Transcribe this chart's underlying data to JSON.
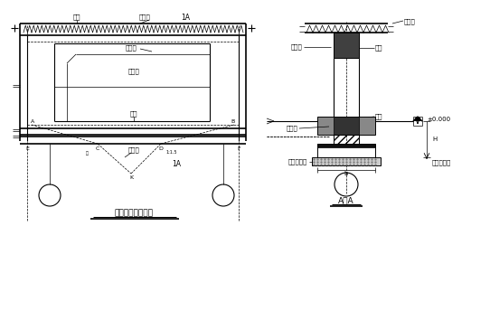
{
  "fig_width": 5.42,
  "fig_height": 3.44,
  "dpi": 100,
  "bg_color": "#ffffff",
  "line_color": "#000000",
  "title_left": "图一，门框架布置",
  "title_right": "A－A",
  "label_quanliang": "圈梁",
  "label_kongxinban": "空心板",
  "label_1A": "1A",
  "label_menkuangliang": "门框梁",
  "label_menkuangzhu": "门框柱",
  "label_diliang": "地梁",
  "label_dicengji": "地层基",
  "label_pm": "±0.000",
  "label_jijidi": "垫基底标高",
  "label_H": "H",
  "label_b": "b",
  "label_hunningtu": "混凝土垫层",
  "label_dicengji2": "地梁架",
  "label_A": "A",
  "label_B": "B",
  "label_E": "E",
  "label_C": "C",
  "label_D": "D",
  "label_F": "F",
  "label_K": "K",
  "label_1A_bottom": "1A"
}
